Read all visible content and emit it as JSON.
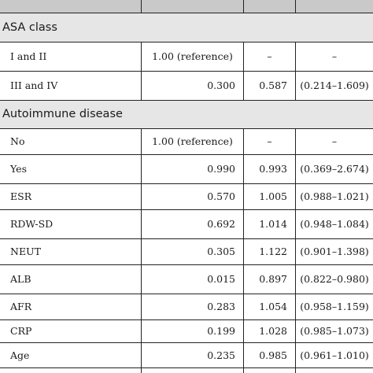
{
  "groups": [
    {
      "label": "ASA class"
    },
    {
      "label": "Autoimmune disease"
    }
  ],
  "rows": [
    {
      "name": "I and II",
      "col2": "1.00 (reference)",
      "col3": "–",
      "col4": "–"
    },
    {
      "name": "III and IV",
      "col2": "0.300",
      "col3": "0.587",
      "col4": "(0.214–1.609)"
    },
    {
      "name": "No",
      "col2": "1.00 (reference)",
      "col3": "–",
      "col4": "–"
    },
    {
      "name": "Yes",
      "col2": "0.990",
      "col3": "0.993",
      "col4": "(0.369–2.674)"
    },
    {
      "name": "ESR",
      "col2": "0.570",
      "col3": "1.005",
      "col4": "(0.988–1.021)"
    },
    {
      "name": "RDW-SD",
      "col2": "0.692",
      "col3": "1.014",
      "col4": "(0.948–1.084)"
    },
    {
      "name": "NEUT",
      "col2": "0.305",
      "col3": "1.122",
      "col4": "(0.901–1.398)"
    },
    {
      "name": "ALB",
      "col2": "0.015",
      "col3": "0.897",
      "col4": "(0.822–0.980)"
    },
    {
      "name": "AFR",
      "col2": "0.283",
      "col3": "1.054",
      "col4": "(0.958–1.159)"
    },
    {
      "name": "CRP",
      "col2": "0.199",
      "col3": "1.028",
      "col4": "(0.985–1.073)"
    },
    {
      "name": "Age",
      "col2": "0.235",
      "col3": "0.985",
      "col4": "(0.961–1.010)"
    }
  ]
}
